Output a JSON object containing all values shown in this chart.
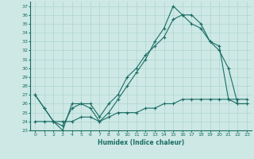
{
  "xlabel": "Humidex (Indice chaleur)",
  "xlim": [
    -0.5,
    23.5
  ],
  "ylim": [
    23,
    37.5
  ],
  "yticks": [
    23,
    24,
    25,
    26,
    27,
    28,
    29,
    30,
    31,
    32,
    33,
    34,
    35,
    36,
    37
  ],
  "xticks": [
    0,
    1,
    2,
    3,
    4,
    5,
    6,
    7,
    8,
    9,
    10,
    11,
    12,
    13,
    14,
    15,
    16,
    17,
    18,
    19,
    20,
    21,
    22,
    23
  ],
  "bg_color": "#cde8e5",
  "line_color": "#1a6e64",
  "grid_color": "#a8cfc9",
  "line1_x": [
    0,
    1,
    2,
    3,
    4,
    5,
    6,
    7,
    8,
    9,
    10,
    11,
    12,
    13,
    14,
    15,
    16,
    17,
    18,
    19,
    20,
    21,
    22,
    23
  ],
  "line1_y": [
    27,
    25.5,
    24,
    23,
    26,
    26,
    25.5,
    24,
    25,
    26.5,
    28,
    29.5,
    31,
    33,
    34.5,
    37,
    36,
    36,
    35,
    33,
    32,
    30,
    26,
    26
  ],
  "line2_x": [
    0,
    1,
    2,
    3,
    4,
    5,
    6,
    7,
    8,
    9,
    10,
    11,
    12,
    13,
    14,
    15,
    16,
    17,
    18,
    19,
    20,
    21,
    22,
    23
  ],
  "line2_y": [
    27,
    25.5,
    24,
    23.5,
    25.5,
    26,
    26,
    24.5,
    26,
    27,
    29,
    30,
    31.5,
    32.5,
    33.5,
    35.5,
    36,
    35,
    34.5,
    33,
    32.5,
    26.5,
    26,
    26
  ],
  "line3_x": [
    0,
    1,
    2,
    3,
    4,
    5,
    6,
    7,
    8,
    9,
    10,
    11,
    12,
    13,
    14,
    15,
    16,
    17,
    18,
    19,
    20,
    21,
    22,
    23
  ],
  "line3_y": [
    24,
    24,
    24,
    24,
    24,
    24.5,
    24.5,
    24,
    24.5,
    25,
    25,
    25,
    25.5,
    25.5,
    26,
    26,
    26.5,
    26.5,
    26.5,
    26.5,
    26.5,
    26.5,
    26.5,
    26.5
  ]
}
